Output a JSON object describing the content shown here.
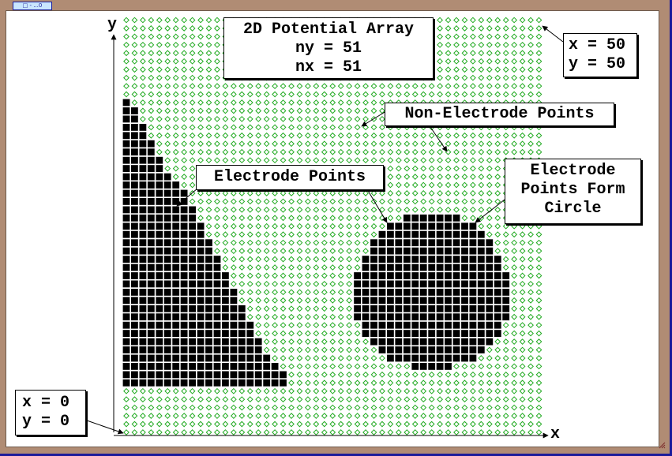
{
  "window": {
    "title": "□ - ...0"
  },
  "diagram": {
    "title_box": {
      "lines": [
        "2D Potential Array",
        "ny = 51",
        "nx = 51"
      ]
    },
    "top_right_box": {
      "lines": [
        "x = 50",
        "y = 50"
      ]
    },
    "bottom_left_box": {
      "lines": [
        "x = 0",
        "y = 0"
      ]
    },
    "non_electrode_label": "Non-Electrode Points",
    "electrode_label": "Electrode Points",
    "circle_label": {
      "lines": [
        "Electrode",
        "Points Form",
        "Circle"
      ]
    },
    "axis": {
      "x_label": "x",
      "y_label": "y"
    },
    "grid": {
      "nx": 51,
      "ny": 51
    },
    "colors": {
      "non_electrode": "#22aa22",
      "electrode": "#000000",
      "frame": "#b08c74",
      "border": "#1b1b9a"
    },
    "electrode_regions": {
      "triangle_rows": [
        {
          "y": 40,
          "x_from": 0,
          "x_to": 0
        },
        {
          "y": 39,
          "x_from": 0,
          "x_to": 1
        },
        {
          "y": 38,
          "x_from": 0,
          "x_to": 1
        },
        {
          "y": 37,
          "x_from": 0,
          "x_to": 2
        },
        {
          "y": 36,
          "x_from": 0,
          "x_to": 2
        },
        {
          "y": 35,
          "x_from": 0,
          "x_to": 3
        },
        {
          "y": 34,
          "x_from": 0,
          "x_to": 3
        },
        {
          "y": 33,
          "x_from": 0,
          "x_to": 4
        },
        {
          "y": 32,
          "x_from": 0,
          "x_to": 4
        },
        {
          "y": 31,
          "x_from": 0,
          "x_to": 5
        },
        {
          "y": 30,
          "x_from": 0,
          "x_to": 6
        },
        {
          "y": 29,
          "x_from": 0,
          "x_to": 7
        },
        {
          "y": 28,
          "x_from": 0,
          "x_to": 7
        },
        {
          "y": 27,
          "x_from": 0,
          "x_to": 8
        },
        {
          "y": 26,
          "x_from": 0,
          "x_to": 8
        },
        {
          "y": 25,
          "x_from": 0,
          "x_to": 9
        },
        {
          "y": 24,
          "x_from": 0,
          "x_to": 9
        },
        {
          "y": 23,
          "x_from": 0,
          "x_to": 10
        },
        {
          "y": 22,
          "x_from": 0,
          "x_to": 10
        },
        {
          "y": 21,
          "x_from": 0,
          "x_to": 11
        },
        {
          "y": 20,
          "x_from": 0,
          "x_to": 11
        },
        {
          "y": 19,
          "x_from": 0,
          "x_to": 12
        },
        {
          "y": 18,
          "x_from": 0,
          "x_to": 12
        },
        {
          "y": 17,
          "x_from": 0,
          "x_to": 13
        },
        {
          "y": 16,
          "x_from": 0,
          "x_to": 13
        },
        {
          "y": 15,
          "x_from": 0,
          "x_to": 14
        },
        {
          "y": 14,
          "x_from": 0,
          "x_to": 14
        },
        {
          "y": 13,
          "x_from": 0,
          "x_to": 15
        },
        {
          "y": 12,
          "x_from": 0,
          "x_to": 15
        },
        {
          "y": 11,
          "x_from": 0,
          "x_to": 16
        },
        {
          "y": 10,
          "x_from": 0,
          "x_to": 16
        },
        {
          "y": 9,
          "x_from": 0,
          "x_to": 17
        },
        {
          "y": 8,
          "x_from": 0,
          "x_to": 18
        },
        {
          "y": 7,
          "x_from": 0,
          "x_to": 19
        },
        {
          "y": 6,
          "x_from": 0,
          "x_to": 19
        }
      ],
      "circle_rows": [
        {
          "y": 26,
          "x_from": 34,
          "x_to": 40
        },
        {
          "y": 25,
          "x_from": 32,
          "x_to": 42
        },
        {
          "y": 24,
          "x_from": 31,
          "x_to": 43
        },
        {
          "y": 23,
          "x_from": 30,
          "x_to": 44
        },
        {
          "y": 22,
          "x_from": 30,
          "x_to": 44
        },
        {
          "y": 21,
          "x_from": 29,
          "x_to": 45
        },
        {
          "y": 20,
          "x_from": 29,
          "x_to": 45
        },
        {
          "y": 19,
          "x_from": 28,
          "x_to": 46
        },
        {
          "y": 18,
          "x_from": 28,
          "x_to": 46
        },
        {
          "y": 17,
          "x_from": 28,
          "x_to": 46
        },
        {
          "y": 16,
          "x_from": 28,
          "x_to": 46
        },
        {
          "y": 15,
          "x_from": 28,
          "x_to": 46
        },
        {
          "y": 14,
          "x_from": 28,
          "x_to": 46
        },
        {
          "y": 13,
          "x_from": 29,
          "x_to": 45
        },
        {
          "y": 12,
          "x_from": 29,
          "x_to": 45
        },
        {
          "y": 11,
          "x_from": 30,
          "x_to": 44
        },
        {
          "y": 10,
          "x_from": 31,
          "x_to": 43
        },
        {
          "y": 9,
          "x_from": 32,
          "x_to": 42
        },
        {
          "y": 8,
          "x_from": 35,
          "x_to": 39
        }
      ]
    }
  }
}
